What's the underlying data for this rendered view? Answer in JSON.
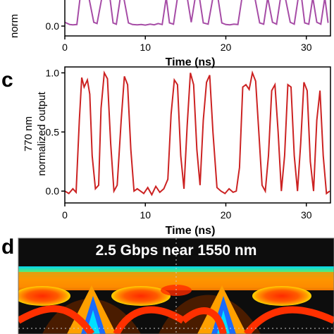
{
  "panels": {
    "top_ylabel": "norm",
    "c": {
      "letter": "c",
      "ylabel_line1": "770 nm",
      "ylabel_line2": "normalized output"
    },
    "d": {
      "letter": "d",
      "title": "2.5 Gbps near 1550 nm"
    }
  },
  "chart_data": [
    {
      "type": "line",
      "panel": "top",
      "xlabel": "Time (ns)",
      "ylabel": "norm",
      "xlim": [
        0,
        33
      ],
      "xticks": [
        0,
        10,
        20,
        30
      ],
      "yticks": [
        0.0
      ],
      "series": [
        {
          "color": "#a64ca6",
          "x": [
            0,
            0.6,
            1.0,
            1.5,
            1.9,
            2.5,
            3.0,
            3.6,
            4.0,
            4.6,
            5.0,
            5.6,
            6.0,
            6.4,
            6.9,
            7.3,
            7.9,
            8.4,
            9.0,
            9.5,
            10.0,
            10.6,
            11.1,
            11.6,
            12.1,
            12.6,
            13.0,
            13.5,
            14.0,
            14.6,
            15.2,
            15.7,
            16.2,
            16.7,
            17.2,
            17.8,
            18.4,
            19.0,
            19.5,
            20.0,
            20.5,
            21.0,
            21.5,
            22.0,
            22.5,
            23.1,
            23.6,
            24.2,
            24.7,
            25.2,
            25.8,
            26.3,
            26.8,
            27.4,
            28.0,
            28.5,
            29.0,
            29.4,
            29.8,
            30.3,
            30.8,
            31.3,
            31.8,
            32.3,
            32.7
          ],
          "y": [
            0.12,
            0.05,
            0.04,
            0.05,
            0.9,
            0.92,
            0.88,
            0.12,
            0.08,
            0.9,
            0.93,
            0.89,
            0.1,
            0.06,
            0.9,
            0.92,
            0.1,
            0.05,
            0.04,
            0.05,
            0.03,
            0.06,
            0.04,
            0.08,
            0.05,
            0.9,
            0.1,
            0.06,
            0.9,
            0.94,
            0.91,
            0.12,
            0.9,
            0.93,
            0.1,
            0.06,
            0.9,
            0.92,
            0.1,
            0.05,
            0.04,
            0.06,
            0.05,
            0.88,
            0.9,
            0.92,
            0.9,
            0.1,
            0.06,
            0.9,
            0.12,
            0.06,
            0.9,
            0.88,
            0.12,
            0.06,
            0.9,
            0.91,
            0.1,
            0.06,
            0.9,
            0.12,
            0.06,
            0.9,
            0.1
          ]
        }
      ]
    },
    {
      "type": "line",
      "panel": "c",
      "xlabel": "Time (ns)",
      "ylabel": "770 nm normalized output",
      "xlim": [
        0,
        33
      ],
      "ylim": [
        -0.1,
        1.05
      ],
      "xticks": [
        0,
        10,
        20,
        30
      ],
      "yticks": [
        0.0,
        0.5,
        1.0
      ],
      "series": [
        {
          "color": "#cc2222",
          "x": [
            0,
            0.5,
            1.0,
            1.4,
            1.8,
            2.1,
            2.4,
            2.8,
            3.1,
            3.4,
            3.8,
            4.2,
            4.5,
            4.9,
            5.3,
            5.7,
            6.1,
            6.5,
            7.0,
            7.4,
            7.8,
            8.2,
            8.6,
            9.0,
            9.4,
            9.8,
            10.3,
            10.8,
            11.3,
            11.8,
            12.3,
            12.8,
            13.2,
            13.6,
            14.0,
            14.4,
            14.8,
            15.2,
            15.6,
            16.0,
            16.4,
            16.8,
            17.2,
            17.6,
            18.0,
            18.4,
            18.9,
            19.4,
            19.9,
            20.4,
            20.9,
            21.3,
            21.7,
            22.1,
            22.5,
            22.9,
            23.3,
            23.7,
            24.1,
            24.5,
            24.9,
            25.3,
            25.7,
            26.1,
            26.5,
            26.9,
            27.3,
            27.7,
            28.1,
            28.5,
            28.9,
            29.3,
            29.7,
            30.1,
            30.5,
            30.9,
            31.3,
            31.7,
            32.1,
            32.5,
            32.9
          ],
          "y": [
            0.0,
            -0.02,
            0.02,
            -0.01,
            0.6,
            0.96,
            0.88,
            0.94,
            0.82,
            0.3,
            0.02,
            0.05,
            0.7,
            1.0,
            0.95,
            0.4,
            0.0,
            0.05,
            0.6,
            0.97,
            0.9,
            0.35,
            0.0,
            0.02,
            0.0,
            -0.02,
            0.03,
            -0.03,
            0.04,
            -0.01,
            0.02,
            0.1,
            0.65,
            0.94,
            0.9,
            0.3,
            0.02,
            0.55,
            1.0,
            0.9,
            0.35,
            0.05,
            0.6,
            0.92,
            0.98,
            0.5,
            0.03,
            0.0,
            -0.02,
            0.02,
            -0.01,
            0.0,
            0.2,
            0.88,
            0.9,
            0.86,
            1.0,
            0.93,
            0.5,
            0.05,
            0.0,
            0.3,
            0.85,
            0.9,
            0.5,
            0.0,
            0.3,
            0.9,
            0.88,
            0.3,
            0.0,
            0.4,
            0.92,
            0.85,
            0.25,
            0.0,
            0.6,
            0.85,
            0.3,
            -0.02,
            0.0
          ]
        }
      ]
    }
  ]
}
